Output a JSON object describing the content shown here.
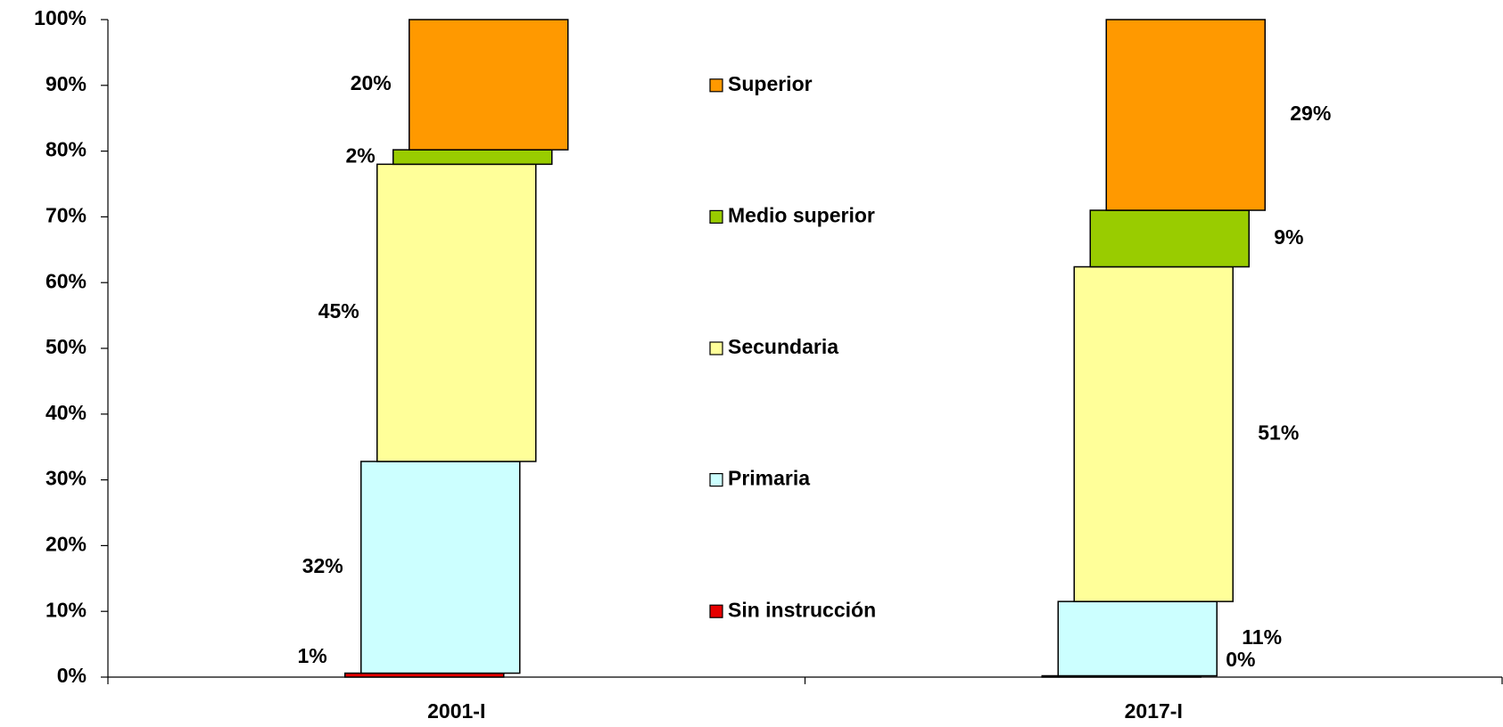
{
  "chart_data": {
    "type": "stacked-bar-offset",
    "categories": [
      "2001-I",
      "2017-I"
    ],
    "series": [
      {
        "name": "Sin instrucción",
        "color": "#e60000",
        "values": [
          0.6,
          0.2
        ],
        "value_labels": [
          "1%",
          "0%"
        ]
      },
      {
        "name": "Primaria",
        "color": "#ccffff",
        "values": [
          32.2,
          11.3
        ],
        "value_labels": [
          "32%",
          "11%"
        ]
      },
      {
        "name": "Secundaria",
        "color": "#ffff99",
        "values": [
          45.2,
          50.9
        ],
        "value_labels": [
          "45%",
          "51%"
        ]
      },
      {
        "name": "Medio superior",
        "color": "#99cc00",
        "values": [
          2.2,
          8.6
        ],
        "value_labels": [
          "2%",
          "9%"
        ]
      },
      {
        "name": "Superior",
        "color": "#ff9900",
        "values": [
          19.8,
          29
        ],
        "value_labels": [
          "20%",
          "29%"
        ]
      }
    ],
    "ylim": [
      0,
      100
    ],
    "yticks": [
      {
        "value": 0,
        "label": "0%"
      },
      {
        "value": 10,
        "label": "10%"
      },
      {
        "value": 20,
        "label": "20%"
      },
      {
        "value": 30,
        "label": "30%"
      },
      {
        "value": 40,
        "label": "40%"
      },
      {
        "value": 50,
        "label": "50%"
      },
      {
        "value": 60,
        "label": "60%"
      },
      {
        "value": 70,
        "label": "70%"
      },
      {
        "value": 80,
        "label": "80%"
      },
      {
        "value": 90,
        "label": "90%"
      },
      {
        "value": 100,
        "label": "100%"
      }
    ],
    "grid": false
  }
}
